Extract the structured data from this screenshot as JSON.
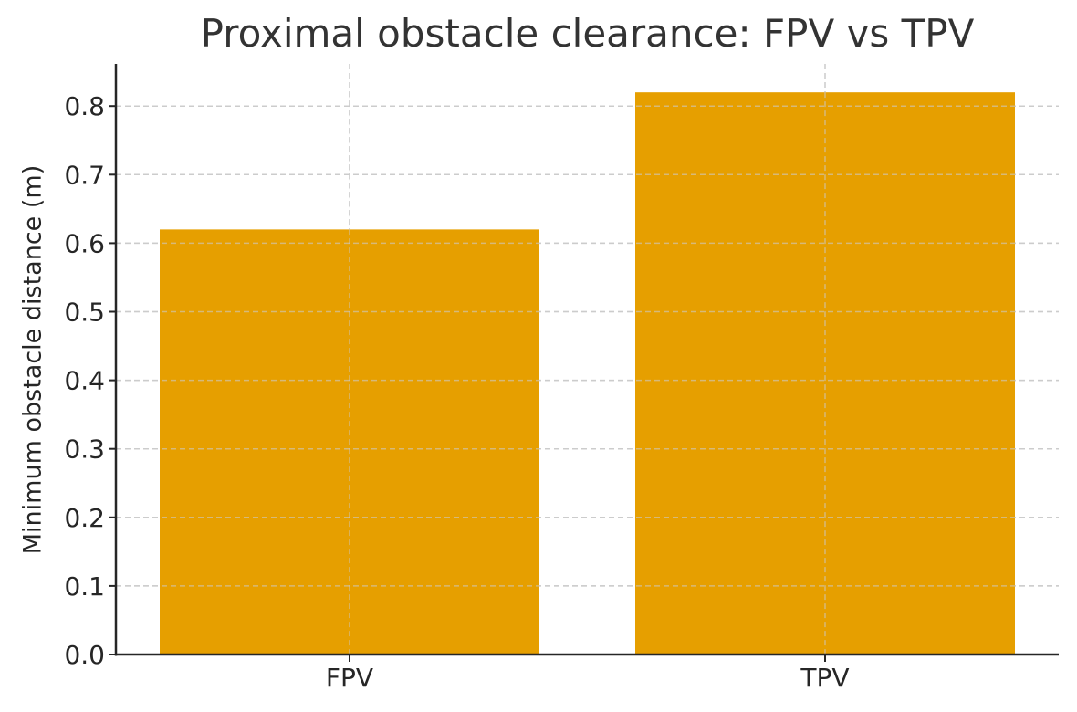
{
  "chart_data": {
    "type": "bar",
    "title": "Proximal obstacle clearance: FPV vs TPV",
    "xlabel": "",
    "ylabel": "Minimum obstacle distance (m)",
    "categories": [
      "FPV",
      "TPV"
    ],
    "values": [
      0.62,
      0.82
    ],
    "ylim": [
      0,
      0.86
    ],
    "yticks": [
      "0.0",
      "0.1",
      "0.2",
      "0.3",
      "0.4",
      "0.5",
      "0.6",
      "0.7",
      "0.8"
    ],
    "grid": true,
    "legend": null,
    "bar_color": "#E69F00"
  }
}
